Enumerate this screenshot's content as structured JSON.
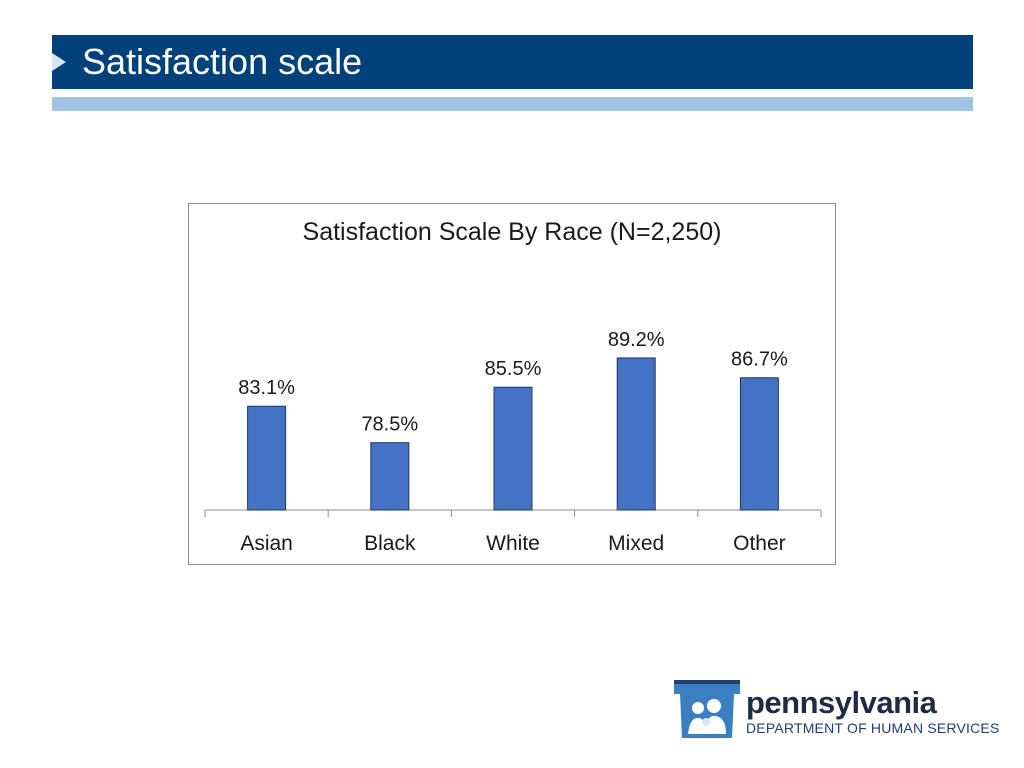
{
  "slide": {
    "title": "Satisfaction scale"
  },
  "chart_data": {
    "type": "bar",
    "title": "Satisfaction Scale By Race (N=2,250)",
    "categories": [
      "Asian",
      "Black",
      "White",
      "Mixed",
      "Other"
    ],
    "values": [
      83.1,
      78.5,
      85.5,
      89.2,
      86.7
    ],
    "value_labels": [
      "83.1%",
      "78.5%",
      "85.5%",
      "89.2%",
      "86.7%"
    ],
    "ylim": [
      70,
      95
    ],
    "grid": false,
    "bar_color": "#4472c4",
    "bar_edge_color": "#1f3864"
  },
  "logo": {
    "wordmark": "pennsylvania",
    "subtitle": "DEPARTMENT OF HUMAN SERVICES",
    "color": "#3a7fc1"
  }
}
